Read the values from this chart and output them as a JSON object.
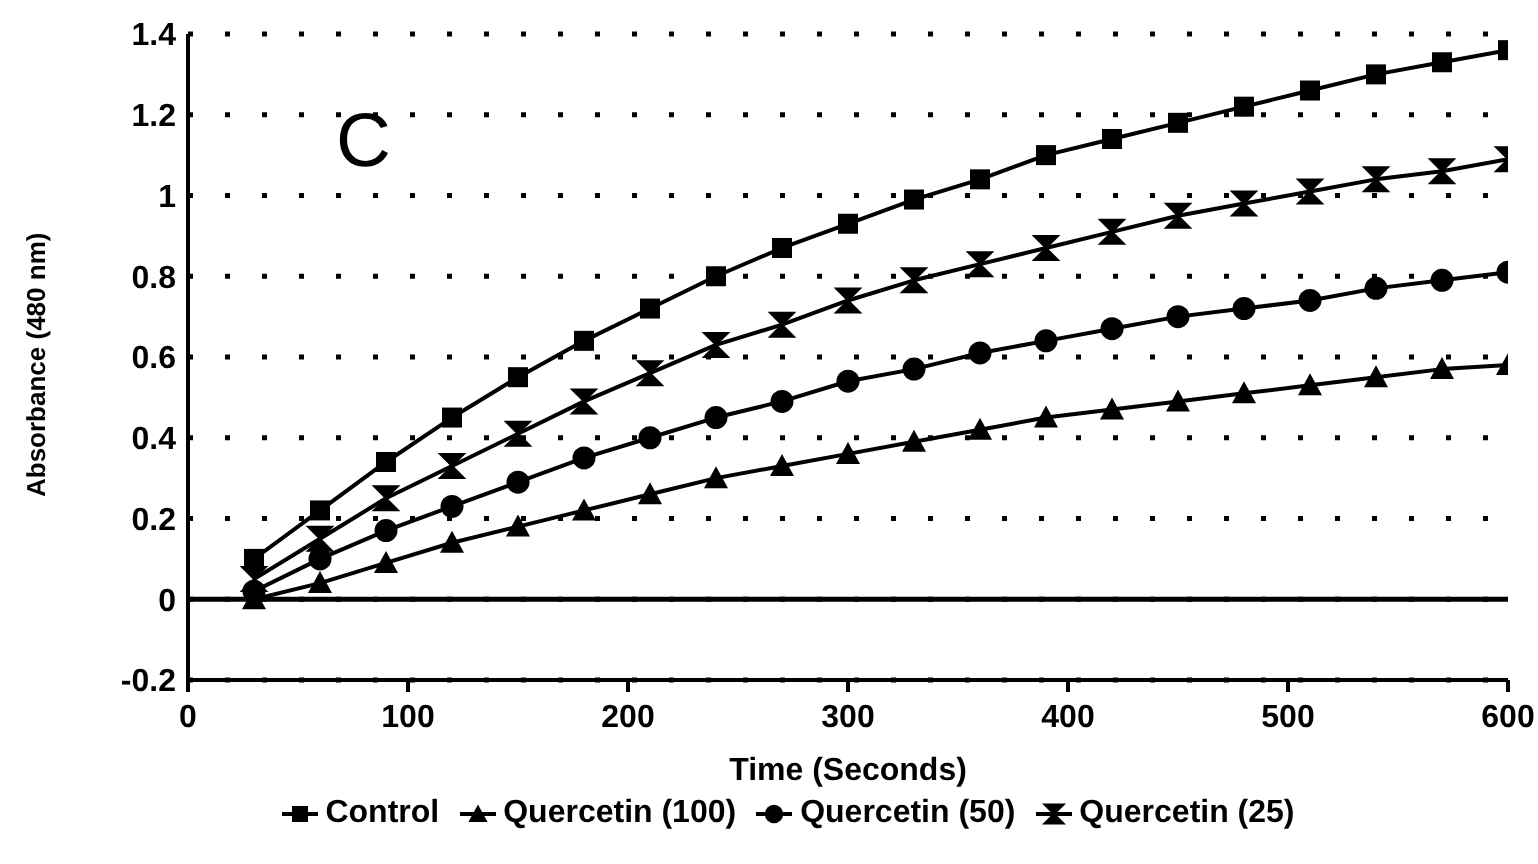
{
  "chart_data": {
    "type": "line",
    "xlabel": "Time (Seconds)",
    "ylabel": "Absorbance (480 nm)",
    "annotations": [
      "C"
    ],
    "x": [
      30,
      60,
      90,
      120,
      150,
      180,
      210,
      240,
      270,
      300,
      330,
      360,
      390,
      420,
      450,
      480,
      510,
      540,
      570,
      600
    ],
    "series": [
      {
        "name": "Control",
        "color": "#000000",
        "marker": "square",
        "values": [
          0.1,
          0.22,
          0.34,
          0.45,
          0.55,
          0.64,
          0.72,
          0.8,
          0.87,
          0.93,
          0.99,
          1.04,
          1.1,
          1.14,
          1.18,
          1.22,
          1.26,
          1.3,
          1.33,
          1.36
        ]
      },
      {
        "name": "Quercetin (100)",
        "color": "#000000",
        "marker": "triangle",
        "values": [
          0.0,
          0.04,
          0.09,
          0.14,
          0.18,
          0.22,
          0.26,
          0.3,
          0.33,
          0.36,
          0.39,
          0.42,
          0.45,
          0.47,
          0.49,
          0.51,
          0.53,
          0.55,
          0.57,
          0.58
        ]
      },
      {
        "name": "Quercetin (50)",
        "color": "#000000",
        "marker": "circle",
        "values": [
          0.02,
          0.1,
          0.17,
          0.23,
          0.29,
          0.35,
          0.4,
          0.45,
          0.49,
          0.54,
          0.57,
          0.61,
          0.64,
          0.67,
          0.7,
          0.72,
          0.74,
          0.77,
          0.79,
          0.81
        ]
      },
      {
        "name": "Quercetin (25)",
        "color": "#000000",
        "marker": "cross",
        "values": [
          0.05,
          0.15,
          0.25,
          0.33,
          0.41,
          0.49,
          0.56,
          0.63,
          0.68,
          0.74,
          0.79,
          0.83,
          0.87,
          0.91,
          0.95,
          0.98,
          1.01,
          1.04,
          1.06,
          1.09
        ]
      }
    ],
    "xlim": [
      0,
      600
    ],
    "xticks": [
      0,
      100,
      200,
      300,
      400,
      500,
      600
    ],
    "ylim": [
      -0.2,
      1.4
    ],
    "yticks": [
      -0.2,
      0,
      0.2,
      0.4,
      0.6,
      0.8,
      1,
      1.2,
      1.4
    ],
    "ref_lines": [
      {
        "axis": "y",
        "value": 0,
        "color": "#000000",
        "line_style": "solid"
      }
    ],
    "grid": "y",
    "legend": "bottom",
    "line_style": "solid"
  }
}
